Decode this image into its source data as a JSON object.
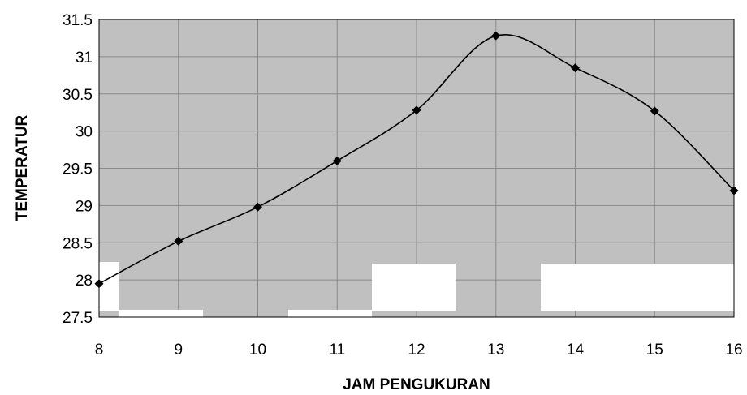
{
  "chart_data": {
    "type": "line",
    "title": "",
    "xlabel": "JAM PENGUKURAN",
    "ylabel": "TEMPERATUR",
    "x": [
      8,
      9,
      10,
      11,
      12,
      13,
      14,
      15,
      16
    ],
    "xlim": [
      8,
      16
    ],
    "ylim": [
      27.5,
      31.5
    ],
    "xticks": [
      "8",
      "9",
      "10",
      "11",
      "12",
      "13",
      "14",
      "15",
      "16"
    ],
    "yticks": [
      "27.5",
      "28",
      "28.5",
      "29",
      "29.5",
      "30",
      "30.5",
      "31",
      "31.5"
    ],
    "grid": true,
    "legend": "none",
    "series": [
      {
        "values": [
          27.95,
          28.52,
          28.98,
          29.6,
          30.28,
          31.28,
          30.85,
          30.27,
          29.2
        ]
      }
    ],
    "colors": {
      "plot_bg": "#c0c0c0",
      "line": "#000000",
      "marker": "#000000",
      "grid": "#8a8a8a"
    }
  }
}
